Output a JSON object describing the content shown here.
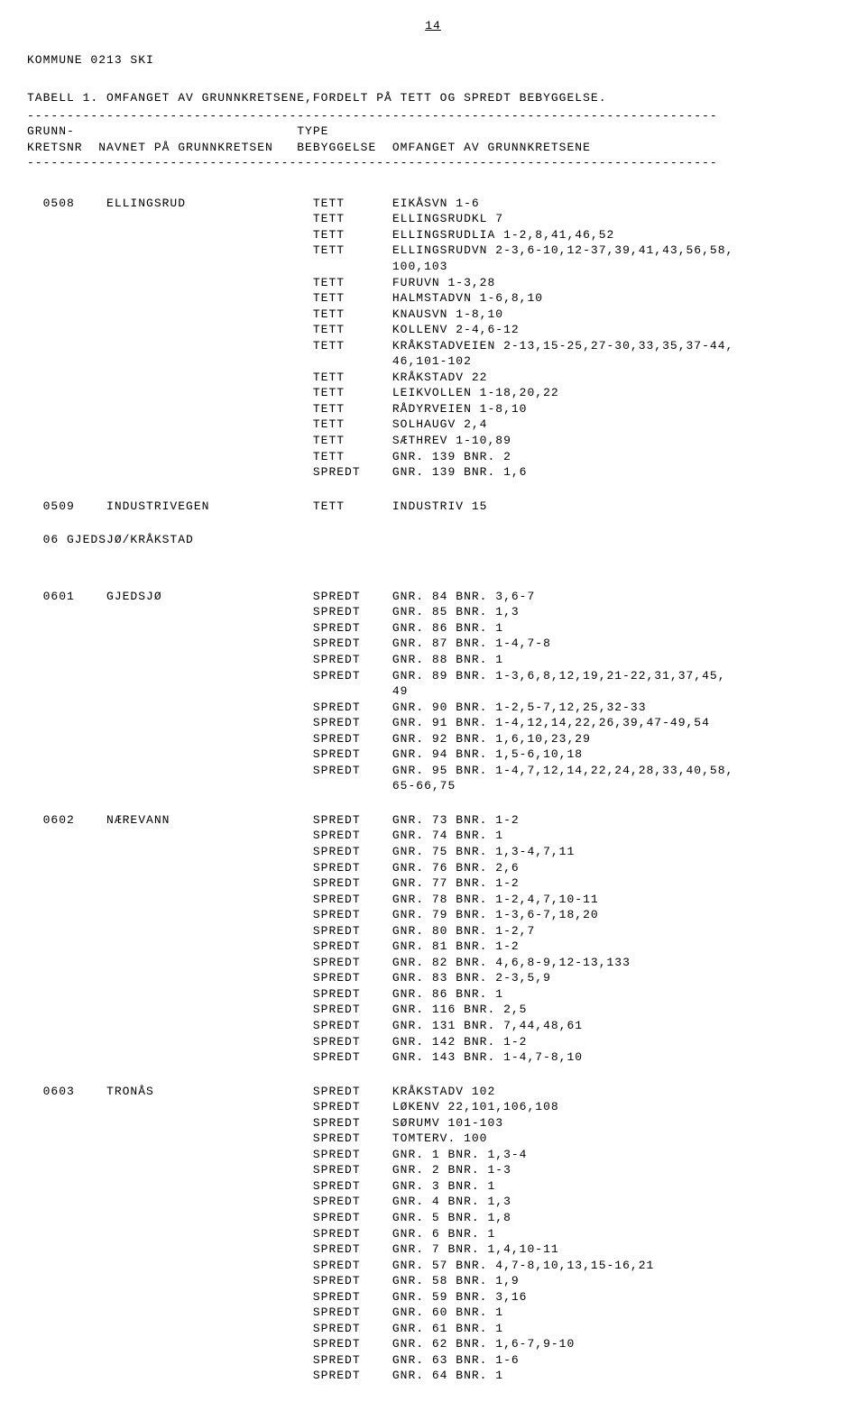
{
  "page_number": "14",
  "kommune_line": "KOMMUNE 0213 SKI",
  "title": "TABELL 1. OMFANGET AV GRUNNKRETSENE,FORDELT PÅ TETT OG SPREDT BEBYGGELSE.",
  "dashes": "---------------------------------------------------------------------------------------",
  "col_header1": "GRUNN-                            TYPE",
  "col_header2": "KRETSNR  NAVNET PÅ GRUNNKRETSEN   BEBYGGELSE  OMFANGET AV GRUNNKRETSENE",
  "kretser": [
    {
      "nr": "0508",
      "navn": "ELLINGSRUD",
      "rows": [
        {
          "type": "TETT",
          "omfang": "EIKÅSVN 1-6"
        },
        {
          "type": "TETT",
          "omfang": "ELLINGSRUDKL 7"
        },
        {
          "type": "TETT",
          "omfang": "ELLINGSRUDLIA 1-2,8,41,46,52"
        },
        {
          "type": "TETT",
          "omfang": "ELLINGSRUDVN 2-3,6-10,12-37,39,41,43,56,58,",
          "cont": "100,103"
        },
        {
          "type": "TETT",
          "omfang": "FURUVN 1-3,28"
        },
        {
          "type": "TETT",
          "omfang": "HALMSTADVN 1-6,8,10"
        },
        {
          "type": "TETT",
          "omfang": "KNAUSVN 1-8,10"
        },
        {
          "type": "TETT",
          "omfang": "KOLLENV 2-4,6-12"
        },
        {
          "type": "TETT",
          "omfang": "KRÅKSTADVEIEN 2-13,15-25,27-30,33,35,37-44,",
          "cont": "46,101-102"
        },
        {
          "type": "TETT",
          "omfang": "KRÅKSTADV 22"
        },
        {
          "type": "TETT",
          "omfang": "LEIKVOLLEN 1-18,20,22"
        },
        {
          "type": "TETT",
          "omfang": "RÅDYRVEIEN 1-8,10"
        },
        {
          "type": "TETT",
          "omfang": "SOLHAUGV 2,4"
        },
        {
          "type": "TETT",
          "omfang": "SÆTHREV 1-10,89"
        },
        {
          "type": "TETT",
          "omfang": "GNR. 139 BNR. 2"
        },
        {
          "type": "SPREDT",
          "omfang": "GNR. 139 BNR. 1,6"
        }
      ]
    },
    {
      "nr": "0509",
      "navn": "INDUSTRIVEGEN",
      "rows": [
        {
          "type": "TETT",
          "omfang": "INDUSTRIV 15"
        }
      ]
    }
  ],
  "region": "06 GJEDSJØ/KRÅKSTAD",
  "kretser2": [
    {
      "nr": "0601",
      "navn": "GJEDSJØ",
      "rows": [
        {
          "type": "SPREDT",
          "omfang": "GNR. 84 BNR. 3,6-7"
        },
        {
          "type": "SPREDT",
          "omfang": "GNR. 85 BNR. 1,3"
        },
        {
          "type": "SPREDT",
          "omfang": "GNR. 86 BNR. 1"
        },
        {
          "type": "SPREDT",
          "omfang": "GNR. 87 BNR. 1-4,7-8"
        },
        {
          "type": "SPREDT",
          "omfang": "GNR. 88 BNR. 1"
        },
        {
          "type": "SPREDT",
          "omfang": "GNR. 89 BNR. 1-3,6,8,12,19,21-22,31,37,45,",
          "cont": "49"
        },
        {
          "type": "SPREDT",
          "omfang": "GNR. 90 BNR. 1-2,5-7,12,25,32-33"
        },
        {
          "type": "SPREDT",
          "omfang": "GNR. 91 BNR. 1-4,12,14,22,26,39,47-49,54"
        },
        {
          "type": "SPREDT",
          "omfang": "GNR. 92 BNR. 1,6,10,23,29"
        },
        {
          "type": "SPREDT",
          "omfang": "GNR. 94 BNR. 1,5-6,10,18"
        },
        {
          "type": "SPREDT",
          "omfang": "GNR. 95 BNR. 1-4,7,12,14,22,24,28,33,40,58,",
          "cont": "65-66,75"
        }
      ]
    },
    {
      "nr": "0602",
      "navn": "NÆREVANN",
      "rows": [
        {
          "type": "SPREDT",
          "omfang": "GNR. 73 BNR. 1-2"
        },
        {
          "type": "SPREDT",
          "omfang": "GNR. 74 BNR. 1"
        },
        {
          "type": "SPREDT",
          "omfang": "GNR. 75 BNR. 1,3-4,7,11"
        },
        {
          "type": "SPREDT",
          "omfang": "GNR. 76 BNR. 2,6"
        },
        {
          "type": "SPREDT",
          "omfang": "GNR. 77 BNR. 1-2"
        },
        {
          "type": "SPREDT",
          "omfang": "GNR. 78 BNR. 1-2,4,7,10-11"
        },
        {
          "type": "SPREDT",
          "omfang": "GNR. 79 BNR. 1-3,6-7,18,20"
        },
        {
          "type": "SPREDT",
          "omfang": "GNR. 80 BNR. 1-2,7"
        },
        {
          "type": "SPREDT",
          "omfang": "GNR. 81 BNR. 1-2"
        },
        {
          "type": "SPREDT",
          "omfang": "GNR. 82 BNR. 4,6,8-9,12-13,133"
        },
        {
          "type": "SPREDT",
          "omfang": "GNR. 83 BNR. 2-3,5,9"
        },
        {
          "type": "SPREDT",
          "omfang": "GNR. 86 BNR. 1"
        },
        {
          "type": "SPREDT",
          "omfang": "GNR. 116 BNR. 2,5"
        },
        {
          "type": "SPREDT",
          "omfang": "GNR. 131 BNR. 7,44,48,61"
        },
        {
          "type": "SPREDT",
          "omfang": "GNR. 142 BNR. 1-2"
        },
        {
          "type": "SPREDT",
          "omfang": "GNR. 143 BNR. 1-4,7-8,10"
        }
      ]
    },
    {
      "nr": "0603",
      "navn": "TRONÅS",
      "rows": [
        {
          "type": "SPREDT",
          "omfang": "KRÅKSTADV 102"
        },
        {
          "type": "SPREDT",
          "omfang": "LØKENV 22,101,106,108"
        },
        {
          "type": "SPREDT",
          "omfang": "SØRUMV 101-103"
        },
        {
          "type": "SPREDT",
          "omfang": "TOMTERV. 100"
        },
        {
          "type": "SPREDT",
          "omfang": "GNR. 1 BNR. 1,3-4"
        },
        {
          "type": "SPREDT",
          "omfang": "GNR. 2 BNR. 1-3"
        },
        {
          "type": "SPREDT",
          "omfang": "GNR. 3 BNR. 1"
        },
        {
          "type": "SPREDT",
          "omfang": "GNR. 4 BNR. 1,3"
        },
        {
          "type": "SPREDT",
          "omfang": "GNR. 5 BNR. 1,8"
        },
        {
          "type": "SPREDT",
          "omfang": "GNR. 6 BNR. 1"
        },
        {
          "type": "SPREDT",
          "omfang": "GNR. 7 BNR. 1,4,10-11"
        },
        {
          "type": "SPREDT",
          "omfang": "GNR. 57 BNR. 4,7-8,10,13,15-16,21"
        },
        {
          "type": "SPREDT",
          "omfang": "GNR. 58 BNR. 1,9"
        },
        {
          "type": "SPREDT",
          "omfang": "GNR. 59 BNR. 3,16"
        },
        {
          "type": "SPREDT",
          "omfang": "GNR. 60 BNR. 1"
        },
        {
          "type": "SPREDT",
          "omfang": "GNR. 61 BNR. 1"
        },
        {
          "type": "SPREDT",
          "omfang": "GNR. 62 BNR. 1,6-7,9-10"
        },
        {
          "type": "SPREDT",
          "omfang": "GNR. 63 BNR. 1-6"
        },
        {
          "type": "SPREDT",
          "omfang": "GNR. 64 BNR. 1"
        }
      ]
    }
  ],
  "layout": {
    "col_kretsnr": 2,
    "col_navn": 10,
    "col_type": 36,
    "col_omfang": 46
  }
}
